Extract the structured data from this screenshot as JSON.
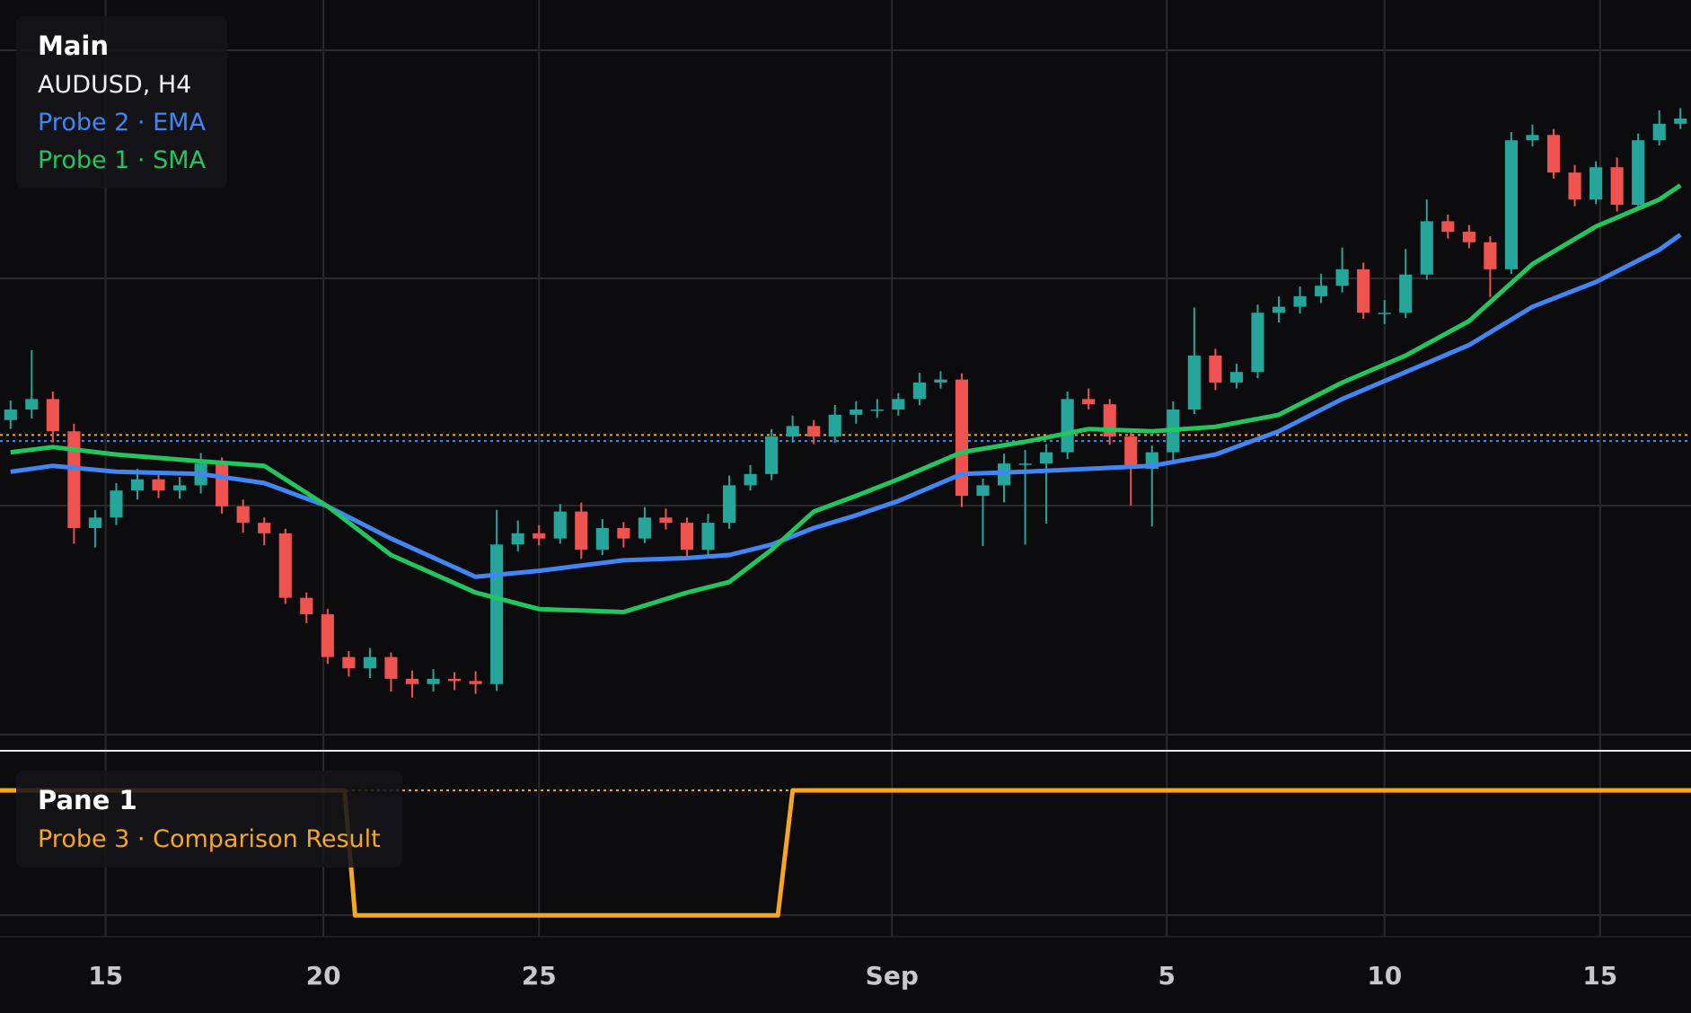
{
  "chart_data": [
    {
      "type": "candlestick",
      "title": "Main",
      "subtitle": "AUDUSD, H4",
      "xlim": [
        -0.5,
        79.5
      ],
      "ylim": [
        0,
        100
      ],
      "up_color": "#26a69a",
      "down_color": "#ef5350",
      "open": [
        44.0,
        45.4,
        46.8,
        42.5,
        29.6,
        31.0,
        34.6,
        36.1,
        34.6,
        35.3,
        38.2,
        32.5,
        30.3,
        28.9,
        20.3,
        18.1,
        12.4,
        10.9,
        12.4,
        9.5,
        8.8,
        9.5,
        9.2,
        8.8,
        27.4,
        28.9,
        28.2,
        31.8,
        26.7,
        29.6,
        28.2,
        31.0,
        30.3,
        26.7,
        30.3,
        35.3,
        36.8,
        41.8,
        43.2,
        41.8,
        44.7,
        45.4,
        45.4,
        46.8,
        49.0,
        49.4,
        33.9,
        35.3,
        38.2,
        38.2,
        39.7,
        46.8,
        46.1,
        41.8,
        37.5,
        39.7,
        45.4,
        52.6,
        49.0,
        50.4,
        58.3,
        59.1,
        60.5,
        61.9,
        64.1,
        58.3,
        58.3,
        63.4,
        70.5,
        69.1,
        67.7,
        64.1,
        81.3,
        82.0,
        77.0,
        73.4,
        77.7,
        72.7,
        81.3,
        83.5
      ],
      "high": [
        46.6,
        53.3,
        47.8,
        43.5,
        32.0,
        35.6,
        37.5,
        37.0,
        36.4,
        39.6,
        39.0,
        33.4,
        31.0,
        29.5,
        21.0,
        18.8,
        13.2,
        13.6,
        13.0,
        10.6,
        10.8,
        10.4,
        10.5,
        32.0,
        30.6,
        30.0,
        32.8,
        33.0,
        30.8,
        30.4,
        32.4,
        32.2,
        31.0,
        31.5,
        36.6,
        38.0,
        42.8,
        44.6,
        44.0,
        46.0,
        46.5,
        46.8,
        47.6,
        50.3,
        50.5,
        50.2,
        36.2,
        39.5,
        40.0,
        40.8,
        47.8,
        48.2,
        46.8,
        42.5,
        40.6,
        46.5,
        59.0,
        53.5,
        51.5,
        59.4,
        60.5,
        61.8,
        63.5,
        67.0,
        65.0,
        60.0,
        66.8,
        73.4,
        71.4,
        70.0,
        68.5,
        82.4,
        83.4,
        82.8,
        78.0,
        78.5,
        79.0,
        82.2,
        85.3,
        85.6
      ],
      "low": [
        42.8,
        44.2,
        41.0,
        27.5,
        27.0,
        30.0,
        33.4,
        33.6,
        33.5,
        34.2,
        31.5,
        29.0,
        27.3,
        19.5,
        16.9,
        11.5,
        9.8,
        9.6,
        7.8,
        7.0,
        7.8,
        8.0,
        7.5,
        7.9,
        26.5,
        27.3,
        27.5,
        25.5,
        26.0,
        27.0,
        27.6,
        29.4,
        25.4,
        25.8,
        29.5,
        34.6,
        36.0,
        41.0,
        40.8,
        41.0,
        43.5,
        44.3,
        44.6,
        46.0,
        48.2,
        32.4,
        27.2,
        33.0,
        27.4,
        30.2,
        38.8,
        45.4,
        40.7,
        32.6,
        29.8,
        38.5,
        44.8,
        48.0,
        48.2,
        49.6,
        57.0,
        58.2,
        59.6,
        61.0,
        57.5,
        56.8,
        57.6,
        62.7,
        68.2,
        66.9,
        60.4,
        63.5,
        80.5,
        76.2,
        72.5,
        72.8,
        71.8,
        72.0,
        80.6,
        82.8
      ],
      "close": [
        45.4,
        46.8,
        42.5,
        29.6,
        31.0,
        34.6,
        36.1,
        34.6,
        35.3,
        38.2,
        32.5,
        30.3,
        28.9,
        20.3,
        18.1,
        12.4,
        10.9,
        12.4,
        9.5,
        8.8,
        9.5,
        9.2,
        8.8,
        27.4,
        28.9,
        28.2,
        31.8,
        26.7,
        29.6,
        28.2,
        31.0,
        30.3,
        26.7,
        30.3,
        35.3,
        36.8,
        41.8,
        43.2,
        41.8,
        44.7,
        45.4,
        45.4,
        46.8,
        49.0,
        49.4,
        33.9,
        35.3,
        38.2,
        38.2,
        39.7,
        46.8,
        46.1,
        41.8,
        37.5,
        39.7,
        45.4,
        52.6,
        49.0,
        50.4,
        58.3,
        59.1,
        60.5,
        61.9,
        64.1,
        58.3,
        58.3,
        63.4,
        70.5,
        69.1,
        67.7,
        64.1,
        81.3,
        82.0,
        77.0,
        73.4,
        77.7,
        72.7,
        81.3,
        83.5,
        84.2
      ],
      "price_lines": [
        {
          "value": 42.0,
          "color": "#f5a623"
        },
        {
          "value": 41.2,
          "color": "#4285f4"
        }
      ],
      "series": [
        {
          "name": "Probe 2 · EMA",
          "color": "#4285f4",
          "x": [
            0,
            2,
            5,
            9,
            12,
            15,
            18,
            22,
            25,
            29,
            32,
            34,
            36,
            38,
            40,
            42,
            45,
            48,
            51,
            54,
            57,
            60,
            63,
            66,
            69,
            72,
            75,
            78,
            79
          ],
          "values": [
            37.1,
            37.9,
            37.1,
            36.8,
            35.6,
            32.5,
            28.2,
            23.1,
            23.9,
            25.3,
            25.6,
            26.0,
            27.4,
            29.6,
            31.3,
            33.2,
            36.8,
            37.1,
            37.5,
            37.9,
            39.4,
            42.5,
            46.8,
            50.4,
            54.0,
            59.1,
            62.4,
            66.7,
            68.7
          ]
        },
        {
          "name": "Probe 1 · SMA",
          "color": "#22c55e",
          "x": [
            0,
            2,
            5,
            9,
            12,
            15,
            18,
            22,
            25,
            29,
            32,
            34,
            36,
            38,
            40,
            42,
            45,
            48,
            51,
            54,
            57,
            60,
            63,
            66,
            69,
            72,
            75,
            78,
            79
          ],
          "values": [
            39.7,
            40.4,
            39.4,
            38.5,
            37.9,
            32.5,
            26.0,
            21.0,
            18.8,
            18.4,
            21.0,
            22.4,
            26.7,
            31.8,
            33.9,
            36.1,
            39.7,
            41.1,
            42.8,
            42.5,
            43.1,
            44.7,
            49.0,
            52.6,
            57.2,
            64.8,
            69.8,
            73.4,
            75.3
          ]
        }
      ]
    },
    {
      "type": "line",
      "title": "Pane 1",
      "xlim": [
        -0.5,
        79.5
      ],
      "ylim": [
        -0.17,
        1.31
      ],
      "xticks": [
        {
          "value": 4.5,
          "label": "15"
        },
        {
          "value": 14.8,
          "label": "20"
        },
        {
          "value": 25.0,
          "label": "25"
        },
        {
          "value": 41.7,
          "label": "Sep"
        },
        {
          "value": 54.7,
          "label": "5"
        },
        {
          "value": 65.0,
          "label": "10"
        },
        {
          "value": 75.2,
          "label": "15"
        }
      ],
      "price_lines": [
        {
          "value": 1,
          "color": "#f5a623"
        }
      ],
      "series": [
        {
          "name": "Probe 3 · Comparison Result",
          "color": "#f5a623",
          "x": [
            -0.5,
            15.8,
            16.3,
            36.3,
            37.0,
            79.5
          ],
          "values": [
            1,
            1,
            0,
            0,
            1,
            1
          ]
        }
      ]
    }
  ]
}
